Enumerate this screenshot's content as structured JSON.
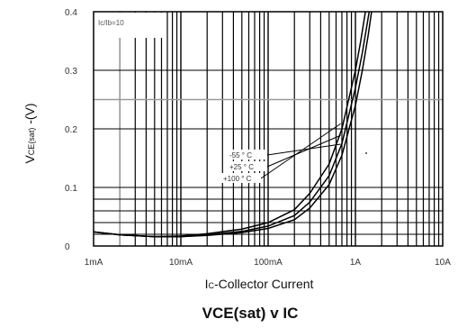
{
  "chart_data": {
    "type": "line",
    "title_main": "VCE(sat) v IC",
    "ylabel_main": "V",
    "ylabel_sub": "CE(sat)",
    "ylabel_suffix": " -(V)",
    "xlabel_prefix": "I",
    "xlabel_sub": "C",
    "xlabel_suffix": "-Collector Current",
    "x_scale": "log",
    "xlim_A": [
      0.001,
      10
    ],
    "ylim": [
      0,
      0.4
    ],
    "x_ticks": [
      {
        "value": 0.001,
        "label": "1mA"
      },
      {
        "value": 0.01,
        "label": "10mA"
      },
      {
        "value": 0.1,
        "label": "100mA"
      },
      {
        "value": 1,
        "label": "1A"
      },
      {
        "value": 10,
        "label": "10A"
      }
    ],
    "y_ticks": [
      {
        "value": 0,
        "label": "0"
      },
      {
        "value": 0.1,
        "label": "0.1"
      },
      {
        "value": 0.2,
        "label": "0.2"
      },
      {
        "value": 0.3,
        "label": "0.3"
      },
      {
        "value": 0.4,
        "label": "0.4"
      }
    ],
    "condition_label": "Ic/Ib=10",
    "grid": true,
    "series": [
      {
        "name": "-55 ° C",
        "x": [
          0.001,
          0.002,
          0.005,
          0.01,
          0.02,
          0.05,
          0.1,
          0.2,
          0.3,
          0.5,
          0.7,
          1,
          1.2,
          1.4,
          1.6
        ],
        "y": [
          0.024,
          0.019,
          0.016,
          0.016,
          0.018,
          0.023,
          0.03,
          0.045,
          0.065,
          0.105,
          0.155,
          0.24,
          0.3,
          0.36,
          0.42
        ]
      },
      {
        "name": "+25 ° C",
        "x": [
          0.001,
          0.002,
          0.005,
          0.01,
          0.02,
          0.05,
          0.1,
          0.2,
          0.3,
          0.5,
          0.7,
          1,
          1.2,
          1.4,
          1.55
        ],
        "y": [
          0.024,
          0.019,
          0.016,
          0.016,
          0.019,
          0.025,
          0.034,
          0.052,
          0.075,
          0.12,
          0.175,
          0.27,
          0.33,
          0.39,
          0.43
        ]
      },
      {
        "name": "+100 ° C",
        "x": [
          0.001,
          0.002,
          0.005,
          0.01,
          0.02,
          0.05,
          0.1,
          0.2,
          0.3,
          0.5,
          0.7,
          1,
          1.15,
          1.3,
          1.45
        ],
        "y": [
          0.024,
          0.019,
          0.016,
          0.017,
          0.021,
          0.029,
          0.04,
          0.062,
          0.09,
          0.14,
          0.2,
          0.3,
          0.35,
          0.4,
          0.44
        ]
      }
    ],
    "colors": {
      "axis": "#000000",
      "grid_major": "#000000",
      "grid_minor": "#000000",
      "grid_highlight": "#9a9a9a",
      "curve": "#000000"
    }
  }
}
